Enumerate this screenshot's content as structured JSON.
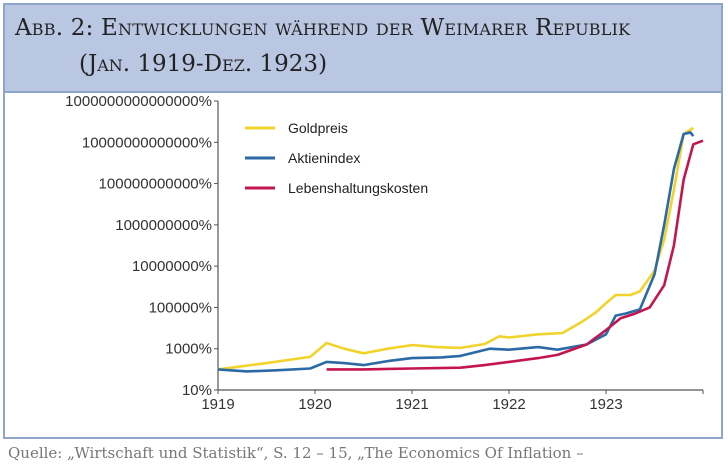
{
  "header": {
    "title_line1": "Abb. 2: Entwicklungen während der Weimarer Republik",
    "title_line2": "(Jan. 1919-Dez. 1923)"
  },
  "source": "Quelle: „Wirtschaft und Statistik“, S. 12 – 15, „The Economics Of Inflation –",
  "chart_data": {
    "type": "line",
    "title": "Abb. 2: Entwicklungen während der Weimarer Republik (Jan. 1919-Dez. 1923)",
    "xlabel": "",
    "ylabel": "",
    "y_scale": "log",
    "ylim": [
      10,
      1000000000000000
    ],
    "xlim": [
      1919,
      1924
    ],
    "x_ticks": [
      "1919",
      "1920",
      "1921",
      "1922",
      "1923"
    ],
    "y_ticks": [
      "10%",
      "1000%",
      "100000%",
      "10000000%",
      "1000000000%",
      "100000000000%",
      "10000000000000%",
      "1000000000000000%"
    ],
    "grid": false,
    "legend_position": "top-left",
    "series": [
      {
        "name": "Goldpreis",
        "color": "#f0d42c",
        "points": [
          [
            1919.0,
            100
          ],
          [
            1919.5,
            200
          ],
          [
            1919.95,
            400
          ],
          [
            1920.12,
            1900
          ],
          [
            1920.3,
            1000
          ],
          [
            1920.5,
            600
          ],
          [
            1920.75,
            1000
          ],
          [
            1921.0,
            1500
          ],
          [
            1921.25,
            1200
          ],
          [
            1921.5,
            1100
          ],
          [
            1921.75,
            1700
          ],
          [
            1921.9,
            4000
          ],
          [
            1922.0,
            3500
          ],
          [
            1922.3,
            5000
          ],
          [
            1922.55,
            5700
          ],
          [
            1922.75,
            20000
          ],
          [
            1922.9,
            60000
          ],
          [
            1923.0,
            160000
          ],
          [
            1923.1,
            400000
          ],
          [
            1923.25,
            400000
          ],
          [
            1923.35,
            600000
          ],
          [
            1923.5,
            6000000
          ],
          [
            1923.6,
            200000000
          ],
          [
            1923.7,
            50000000000
          ],
          [
            1923.8,
            25000000000000
          ],
          [
            1923.9,
            50000000000000
          ]
        ]
      },
      {
        "name": "Aktienindex",
        "color": "#2b6aa6",
        "points": [
          [
            1919.0,
            100
          ],
          [
            1919.3,
            80
          ],
          [
            1919.6,
            90
          ],
          [
            1919.95,
            110
          ],
          [
            1920.12,
            230
          ],
          [
            1920.3,
            200
          ],
          [
            1920.5,
            160
          ],
          [
            1920.75,
            250
          ],
          [
            1921.0,
            350
          ],
          [
            1921.3,
            380
          ],
          [
            1921.5,
            450
          ],
          [
            1921.8,
            1000
          ],
          [
            1922.0,
            900
          ],
          [
            1922.3,
            1200
          ],
          [
            1922.5,
            900
          ],
          [
            1922.8,
            1600
          ],
          [
            1923.0,
            5000
          ],
          [
            1923.1,
            40000
          ],
          [
            1923.2,
            50000
          ],
          [
            1923.35,
            80000
          ],
          [
            1923.5,
            4000000
          ],
          [
            1923.6,
            1000000000
          ],
          [
            1923.7,
            500000000000
          ],
          [
            1923.8,
            25000000000000
          ],
          [
            1923.87,
            30000000000000
          ],
          [
            1923.9,
            20000000000000
          ]
        ]
      },
      {
        "name": "Lebenshaltungskosten",
        "color": "#c3154e",
        "points": [
          [
            1920.12,
            100
          ],
          [
            1920.5,
            100
          ],
          [
            1921.0,
            110
          ],
          [
            1921.5,
            120
          ],
          [
            1921.75,
            160
          ],
          [
            1922.0,
            230
          ],
          [
            1922.3,
            350
          ],
          [
            1922.5,
            500
          ],
          [
            1922.8,
            1600
          ],
          [
            1923.0,
            8000
          ],
          [
            1923.15,
            30000
          ],
          [
            1923.3,
            50000
          ],
          [
            1923.45,
            100000
          ],
          [
            1923.6,
            1200000
          ],
          [
            1923.7,
            100000000
          ],
          [
            1923.8,
            150000000000
          ],
          [
            1923.9,
            8000000000000
          ],
          [
            1924.0,
            12000000000000
          ]
        ]
      }
    ]
  }
}
